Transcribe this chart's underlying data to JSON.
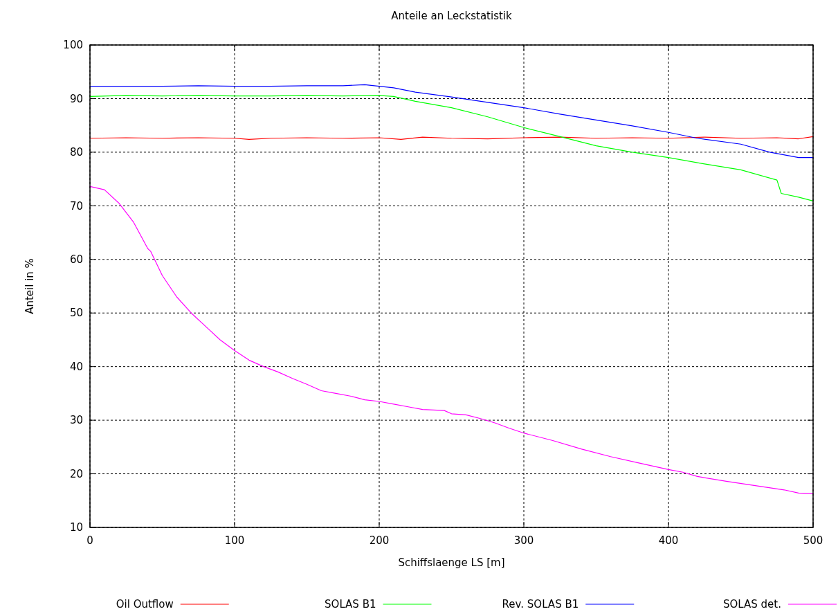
{
  "chart_data": {
    "type": "line",
    "title": "Anteile an Leckstatistik",
    "xlabel": "Schiffslaenge LS [m]",
    "ylabel": "Anteil in  %",
    "xlim": [
      0,
      500
    ],
    "xticks": [
      0,
      100,
      200,
      300,
      400,
      500
    ],
    "ylim": [
      10,
      100
    ],
    "yticks": [
      10,
      20,
      30,
      40,
      50,
      60,
      70,
      80,
      90,
      100
    ],
    "grid": true,
    "legend": "bottom",
    "marker": "none",
    "line_style": "solid",
    "series": [
      {
        "name": "Oil Outflow",
        "color": "#ff0000",
        "x": [
          0,
          25,
          50,
          75,
          100,
          110,
          125,
          150,
          175,
          200,
          215,
          230,
          250,
          275,
          300,
          325,
          350,
          375,
          400,
          425,
          450,
          475,
          490,
          500
        ],
        "values": [
          82.6,
          82.7,
          82.6,
          82.7,
          82.6,
          82.4,
          82.6,
          82.7,
          82.6,
          82.7,
          82.4,
          82.8,
          82.6,
          82.5,
          82.7,
          82.8,
          82.6,
          82.7,
          82.6,
          82.8,
          82.6,
          82.7,
          82.5,
          82.9
        ]
      },
      {
        "name": "SOLAS B1",
        "color": "#00ff00",
        "x": [
          0,
          25,
          50,
          75,
          100,
          125,
          150,
          175,
          200,
          210,
          225,
          250,
          275,
          300,
          325,
          350,
          375,
          400,
          425,
          450,
          475,
          478,
          490,
          500
        ],
        "values": [
          90.4,
          90.6,
          90.5,
          90.6,
          90.5,
          90.5,
          90.6,
          90.5,
          90.6,
          90.4,
          89.5,
          88.3,
          86.6,
          84.6,
          82.9,
          81.2,
          80.0,
          79.0,
          77.8,
          76.7,
          74.8,
          72.3,
          71.6,
          70.9
        ]
      },
      {
        "name": "Rev. SOLAS B1",
        "color": "#0000ff",
        "x": [
          0,
          25,
          50,
          75,
          100,
          125,
          150,
          175,
          190,
          200,
          210,
          225,
          250,
          275,
          300,
          325,
          350,
          375,
          400,
          420,
          450,
          470,
          490,
          500
        ],
        "values": [
          92.3,
          92.3,
          92.3,
          92.4,
          92.3,
          92.3,
          92.4,
          92.4,
          92.6,
          92.3,
          92.0,
          91.2,
          90.3,
          89.3,
          88.3,
          87.1,
          86.0,
          84.9,
          83.7,
          82.6,
          81.5,
          80.0,
          79.0,
          79.0
        ]
      },
      {
        "name": "SOLAS det.",
        "color": "#ff00ff",
        "x": [
          0,
          10,
          20,
          30,
          40,
          42,
          50,
          60,
          70,
          80,
          90,
          100,
          110,
          120,
          130,
          140,
          150,
          160,
          170,
          180,
          190,
          200,
          210,
          220,
          230,
          245,
          250,
          260,
          270,
          280,
          290,
          300,
          320,
          340,
          360,
          380,
          400,
          410,
          420,
          440,
          460,
          480,
          490,
          500
        ],
        "values": [
          73.6,
          73.0,
          70.5,
          67.0,
          62.0,
          61.5,
          57.0,
          53.0,
          50.0,
          47.5,
          45.0,
          43.0,
          41.2,
          40.0,
          39.0,
          37.8,
          36.7,
          35.5,
          35.0,
          34.5,
          33.8,
          33.5,
          33.0,
          32.5,
          32.0,
          31.8,
          31.2,
          31.0,
          30.3,
          29.5,
          28.5,
          27.6,
          26.2,
          24.6,
          23.2,
          22.0,
          20.8,
          20.3,
          19.5,
          18.6,
          17.8,
          17.0,
          16.4,
          16.3
        ]
      }
    ]
  }
}
